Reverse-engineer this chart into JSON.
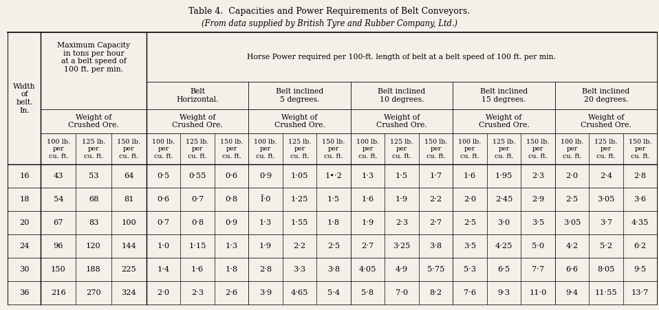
{
  "title1": "Table 4.  Capacities and Power Requirements of Belt Conveyors.",
  "title2": "(From data supplied by British Tyre and Rubber Company, Ltd.)",
  "data_rows": [
    [
      "16",
      "43",
      "53",
      "64",
      "0·5",
      "0·55",
      "0·6",
      "0·9",
      "1·05",
      "1•·2",
      "1·3",
      "1·5",
      "1·7",
      "1·6",
      "1·95",
      "2·3",
      "2·0",
      "2·4",
      "2·8"
    ],
    [
      "18",
      "54",
      "68",
      "81",
      "0·6",
      "0·7",
      "0·8",
      "Ī·0",
      "1·25",
      "1·5",
      "1·6",
      "1·9",
      "2·2",
      "2·0",
      "2·45",
      "2·9",
      "2·5",
      "3·05",
      "3·6"
    ],
    [
      "20",
      "67",
      "83",
      "100",
      "0·7",
      "0·8",
      "0·9",
      "1·3",
      "1·55",
      "1·8",
      "1·9",
      "2·3",
      "2·7",
      "2·5",
      "3·0",
      "3·5",
      "3·05",
      "3·7",
      "4·35"
    ],
    [
      "24",
      "96",
      "120",
      "144",
      "1·0",
      "1·15",
      "1·3",
      "1·9",
      "2·2",
      "2·5",
      "2·7",
      "3·25",
      "3·8",
      "3·5",
      "4·25",
      "5·0",
      "4·2",
      "5·2",
      "6·2"
    ],
    [
      "30",
      "150",
      "188",
      "225",
      "1·4",
      "1·6",
      "1·8",
      "2·8",
      "3·3",
      "3·8",
      "4·05",
      "4·9",
      "5·75",
      "5·3",
      "6·5",
      "7·7",
      "6·6",
      "8·05",
      "9·5"
    ],
    [
      "36",
      "216",
      "270",
      "324",
      "2·0",
      "2·3",
      "2·6",
      "3·9",
      "4·65",
      "5·4",
      "5·8",
      "7·0",
      "8·2",
      "7·6",
      "9·3",
      "11·0",
      "9·4",
      "11·55",
      "13·7"
    ]
  ],
  "bg_color": "#f2f0e8"
}
